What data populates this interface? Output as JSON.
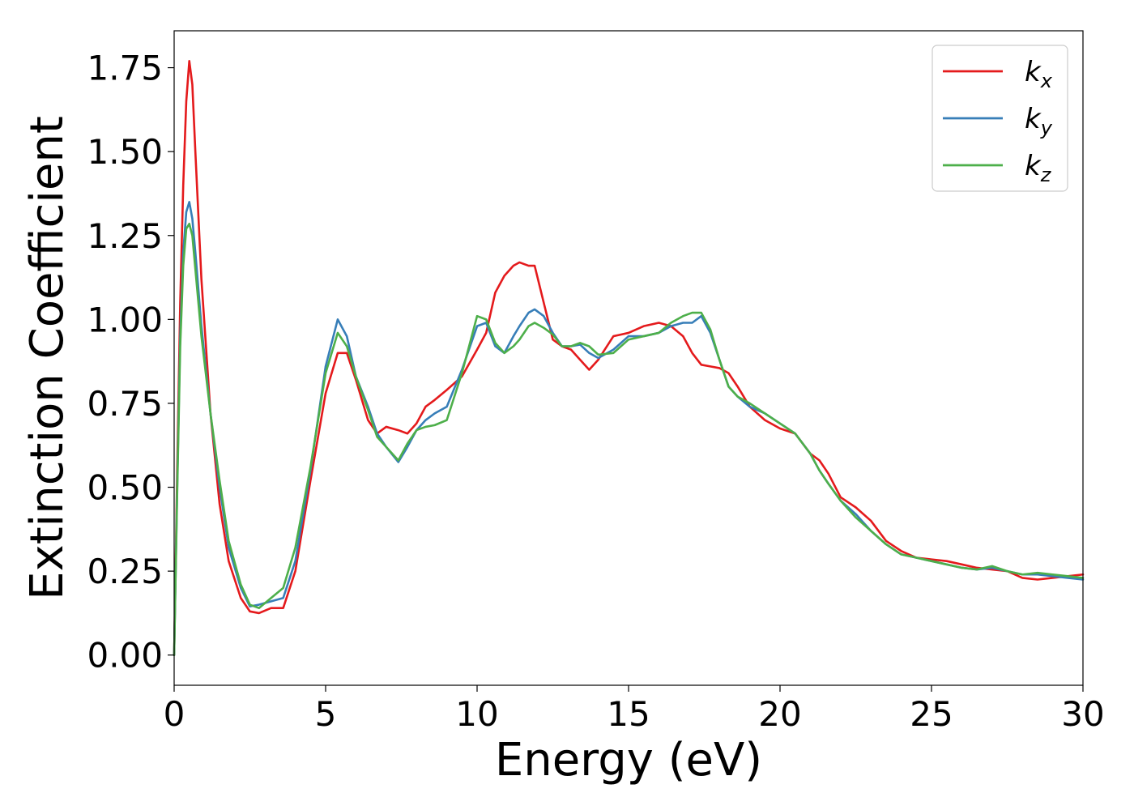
{
  "chart_data": {
    "type": "line",
    "title": "",
    "xlabel": "Energy (eV)",
    "ylabel": "Extinction Coefficient",
    "xlim": [
      0,
      30
    ],
    "ylim": [
      -0.09,
      1.86
    ],
    "xticks": [
      0,
      5,
      10,
      15,
      20,
      25,
      30
    ],
    "yticks": [
      0.0,
      0.25,
      0.5,
      0.75,
      1.0,
      1.25,
      1.5,
      1.75
    ],
    "xtick_labels": [
      "0",
      "5",
      "10",
      "15",
      "20",
      "25",
      "30"
    ],
    "ytick_labels": [
      "0.00",
      "0.25",
      "0.50",
      "0.75",
      "1.00",
      "1.25",
      "1.50",
      "1.75"
    ],
    "grid": false,
    "legend_position": "top-right",
    "series": [
      {
        "name": "k",
        "subscript": "x",
        "color": "#e41a1c",
        "x": [
          0.0,
          0.1,
          0.2,
          0.3,
          0.4,
          0.5,
          0.6,
          0.7,
          0.9,
          1.2,
          1.5,
          1.8,
          2.2,
          2.5,
          2.8,
          3.2,
          3.6,
          4.0,
          4.5,
          5.0,
          5.4,
          5.7,
          6.0,
          6.4,
          6.7,
          7.0,
          7.4,
          7.7,
          8.0,
          8.3,
          8.6,
          9.0,
          9.5,
          10.0,
          10.3,
          10.6,
          10.9,
          11.2,
          11.4,
          11.7,
          11.9,
          12.2,
          12.5,
          12.8,
          13.1,
          13.4,
          13.7,
          14.0,
          14.5,
          15.0,
          15.5,
          16.0,
          16.4,
          16.8,
          17.1,
          17.4,
          17.7,
          18.0,
          18.3,
          18.6,
          19.0,
          19.5,
          20.0,
          20.5,
          21.0,
          21.3,
          21.6,
          22.0,
          22.5,
          23.0,
          23.5,
          24.0,
          24.5,
          25.0,
          25.5,
          26.0,
          26.5,
          27.0,
          27.5,
          28.0,
          28.5,
          29.0,
          29.5,
          30.0
        ],
        "y": [
          0.0,
          0.55,
          1.05,
          1.4,
          1.65,
          1.77,
          1.7,
          1.5,
          1.12,
          0.72,
          0.45,
          0.28,
          0.17,
          0.13,
          0.125,
          0.14,
          0.14,
          0.25,
          0.52,
          0.78,
          0.9,
          0.9,
          0.82,
          0.7,
          0.66,
          0.68,
          0.67,
          0.66,
          0.69,
          0.74,
          0.76,
          0.79,
          0.83,
          0.91,
          0.96,
          1.08,
          1.13,
          1.16,
          1.17,
          1.16,
          1.16,
          1.05,
          0.94,
          0.92,
          0.91,
          0.88,
          0.85,
          0.88,
          0.95,
          0.96,
          0.98,
          0.99,
          0.98,
          0.95,
          0.9,
          0.865,
          0.86,
          0.855,
          0.84,
          0.8,
          0.74,
          0.7,
          0.675,
          0.66,
          0.6,
          0.58,
          0.54,
          0.47,
          0.44,
          0.4,
          0.34,
          0.31,
          0.29,
          0.285,
          0.28,
          0.27,
          0.26,
          0.255,
          0.25,
          0.23,
          0.225,
          0.23,
          0.235,
          0.24
        ]
      },
      {
        "name": "k",
        "subscript": "y",
        "color": "#377eb8",
        "x": [
          0.0,
          0.1,
          0.2,
          0.3,
          0.4,
          0.5,
          0.6,
          0.7,
          0.9,
          1.2,
          1.5,
          1.8,
          2.2,
          2.5,
          2.8,
          3.2,
          3.6,
          4.0,
          4.5,
          5.0,
          5.4,
          5.7,
          6.0,
          6.4,
          6.7,
          7.0,
          7.4,
          7.7,
          8.0,
          8.3,
          8.6,
          9.0,
          9.5,
          10.0,
          10.3,
          10.6,
          10.9,
          11.2,
          11.4,
          11.7,
          11.9,
          12.2,
          12.5,
          12.8,
          13.1,
          13.4,
          13.7,
          14.0,
          14.5,
          15.0,
          15.5,
          16.0,
          16.4,
          16.8,
          17.1,
          17.4,
          17.7,
          18.0,
          18.3,
          18.6,
          19.0,
          19.5,
          20.0,
          20.5,
          21.0,
          21.3,
          21.6,
          22.0,
          22.5,
          23.0,
          23.5,
          24.0,
          24.5,
          25.0,
          25.5,
          26.0,
          26.5,
          27.0,
          27.5,
          28.0,
          28.5,
          29.0,
          29.5,
          30.0
        ],
        "y": [
          0.0,
          0.5,
          0.95,
          1.2,
          1.32,
          1.35,
          1.3,
          1.2,
          0.98,
          0.72,
          0.5,
          0.32,
          0.2,
          0.145,
          0.15,
          0.16,
          0.17,
          0.28,
          0.55,
          0.86,
          1.0,
          0.95,
          0.83,
          0.74,
          0.66,
          0.62,
          0.575,
          0.62,
          0.67,
          0.7,
          0.72,
          0.74,
          0.85,
          0.98,
          0.99,
          0.92,
          0.9,
          0.95,
          0.98,
          1.02,
          1.03,
          1.01,
          0.96,
          0.92,
          0.92,
          0.925,
          0.9,
          0.885,
          0.91,
          0.95,
          0.95,
          0.96,
          0.98,
          0.99,
          0.99,
          1.01,
          0.96,
          0.88,
          0.8,
          0.77,
          0.74,
          0.72,
          0.69,
          0.66,
          0.6,
          0.55,
          0.51,
          0.46,
          0.42,
          0.37,
          0.33,
          0.3,
          0.29,
          0.28,
          0.27,
          0.26,
          0.255,
          0.26,
          0.25,
          0.24,
          0.24,
          0.235,
          0.23,
          0.225
        ]
      },
      {
        "name": "k",
        "subscript": "z",
        "color": "#4daf4a",
        "x": [
          0.0,
          0.1,
          0.2,
          0.3,
          0.4,
          0.5,
          0.6,
          0.7,
          0.9,
          1.2,
          1.5,
          1.8,
          2.2,
          2.5,
          2.8,
          3.2,
          3.6,
          4.0,
          4.5,
          5.0,
          5.4,
          5.7,
          6.0,
          6.4,
          6.7,
          7.0,
          7.4,
          7.7,
          8.0,
          8.3,
          8.6,
          9.0,
          9.5,
          10.0,
          10.3,
          10.6,
          10.9,
          11.2,
          11.4,
          11.7,
          11.9,
          12.2,
          12.5,
          12.8,
          13.1,
          13.4,
          13.7,
          14.0,
          14.5,
          15.0,
          15.5,
          16.0,
          16.4,
          16.8,
          17.1,
          17.4,
          17.7,
          18.0,
          18.3,
          18.6,
          19.0,
          19.5,
          20.0,
          20.5,
          21.0,
          21.3,
          21.6,
          22.0,
          22.5,
          23.0,
          23.5,
          24.0,
          24.5,
          25.0,
          25.5,
          26.0,
          26.5,
          27.0,
          27.5,
          28.0,
          28.5,
          29.0,
          29.5,
          30.0
        ],
        "y": [
          0.0,
          0.48,
          0.92,
          1.16,
          1.27,
          1.285,
          1.25,
          1.15,
          0.95,
          0.72,
          0.52,
          0.34,
          0.21,
          0.15,
          0.14,
          0.17,
          0.2,
          0.32,
          0.56,
          0.84,
          0.96,
          0.92,
          0.83,
          0.73,
          0.65,
          0.62,
          0.58,
          0.63,
          0.67,
          0.68,
          0.685,
          0.7,
          0.84,
          1.01,
          1.0,
          0.93,
          0.9,
          0.92,
          0.94,
          0.98,
          0.99,
          0.975,
          0.955,
          0.92,
          0.92,
          0.93,
          0.92,
          0.895,
          0.9,
          0.94,
          0.95,
          0.96,
          0.99,
          1.01,
          1.02,
          1.02,
          0.97,
          0.88,
          0.8,
          0.77,
          0.75,
          0.72,
          0.69,
          0.66,
          0.6,
          0.55,
          0.51,
          0.46,
          0.41,
          0.37,
          0.33,
          0.3,
          0.29,
          0.28,
          0.27,
          0.26,
          0.255,
          0.265,
          0.25,
          0.24,
          0.245,
          0.24,
          0.235,
          0.23
        ]
      }
    ]
  }
}
